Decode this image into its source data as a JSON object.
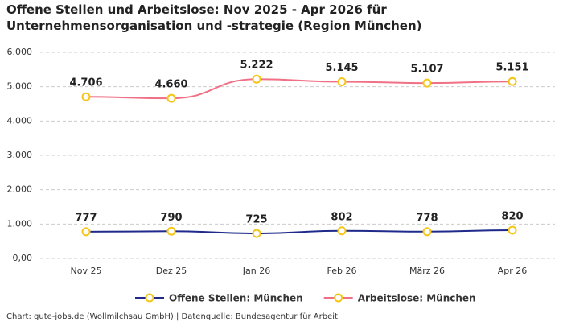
{
  "chart_data": {
    "type": "line",
    "title": "Offene Stellen und Arbeitslose: Nov 2025 - Apr 2026 für Unternehmensorganisation und -strategie (Region München)",
    "source": "Chart: gute-jobs.de (Wollmilchsau GmbH) | Datenquelle: Bundesagentur für Arbeit",
    "categories": [
      "Nov 25",
      "Dez 25",
      "Jan 26",
      "Feb 26",
      "März 26",
      "Apr 26"
    ],
    "series": [
      {
        "name": "Offene Stellen: München",
        "color": "#1f2a8a",
        "values": [
          777,
          790,
          725,
          802,
          778,
          820
        ],
        "value_labels": [
          "777",
          "790",
          "725",
          "802",
          "778",
          "820"
        ]
      },
      {
        "name": "Arbeitslose: München",
        "color": "#f07085",
        "values": [
          4706,
          4660,
          5222,
          5145,
          5107,
          5151
        ],
        "value_labels": [
          "4.706",
          "4.660",
          "5.222",
          "5.145",
          "5.107",
          "5.151"
        ]
      }
    ],
    "marker_color": "#f5c518",
    "ylim": [
      0,
      6000
    ],
    "yticks": [
      {
        "value": 0,
        "label": "0,00"
      },
      {
        "value": 1000,
        "label": "1.000"
      },
      {
        "value": 2000,
        "label": "2.000"
      },
      {
        "value": 3000,
        "label": "3.000"
      },
      {
        "value": 4000,
        "label": "4.000"
      },
      {
        "value": 5000,
        "label": "5.000"
      },
      {
        "value": 6000,
        "label": "6.000"
      }
    ],
    "grid": true
  }
}
